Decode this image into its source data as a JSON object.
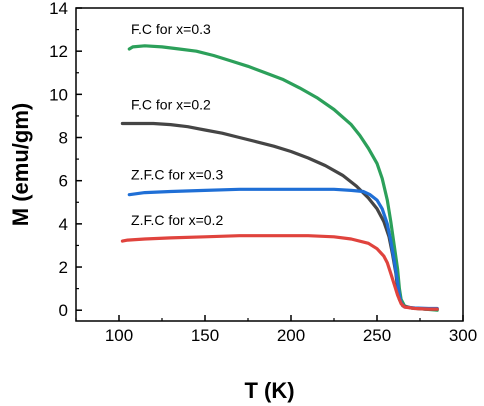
{
  "chart_data": {
    "type": "line",
    "xlabel": "T (K)",
    "ylabel": "M (emu/gm)",
    "xlim": [
      75,
      300
    ],
    "ylim": [
      -0.5,
      14
    ],
    "x_ticks": [
      100,
      150,
      200,
      250,
      300
    ],
    "y_ticks": [
      0,
      2,
      4,
      6,
      8,
      10,
      12,
      14
    ],
    "grid": false,
    "series": [
      {
        "name": "F.C for x=0.3",
        "color": "#2ca05a",
        "points": [
          [
            106,
            12.1
          ],
          [
            108,
            12.2
          ],
          [
            115,
            12.25
          ],
          [
            125,
            12.2
          ],
          [
            135,
            12.1
          ],
          [
            145,
            12.0
          ],
          [
            155,
            11.8
          ],
          [
            165,
            11.55
          ],
          [
            175,
            11.3
          ],
          [
            185,
            11.0
          ],
          [
            195,
            10.7
          ],
          [
            205,
            10.3
          ],
          [
            215,
            9.85
          ],
          [
            225,
            9.3
          ],
          [
            235,
            8.6
          ],
          [
            240,
            8.1
          ],
          [
            245,
            7.5
          ],
          [
            250,
            6.8
          ],
          [
            253,
            6.1
          ],
          [
            256,
            5.1
          ],
          [
            258,
            4.1
          ],
          [
            260,
            3.0
          ],
          [
            262,
            1.9
          ],
          [
            263,
            1.0
          ],
          [
            264,
            0.5
          ],
          [
            266,
            0.2
          ],
          [
            270,
            0.1
          ],
          [
            278,
            0.05
          ],
          [
            285,
            0.0
          ]
        ]
      },
      {
        "name": "F.C for x=0.2",
        "color": "#454545",
        "points": [
          [
            102,
            8.65
          ],
          [
            110,
            8.65
          ],
          [
            120,
            8.65
          ],
          [
            130,
            8.6
          ],
          [
            140,
            8.5
          ],
          [
            150,
            8.35
          ],
          [
            160,
            8.2
          ],
          [
            170,
            8.0
          ],
          [
            180,
            7.8
          ],
          [
            190,
            7.6
          ],
          [
            200,
            7.35
          ],
          [
            210,
            7.05
          ],
          [
            220,
            6.7
          ],
          [
            230,
            6.25
          ],
          [
            238,
            5.75
          ],
          [
            245,
            5.2
          ],
          [
            250,
            4.7
          ],
          [
            254,
            4.1
          ],
          [
            257,
            3.4
          ],
          [
            259,
            2.6
          ],
          [
            261,
            1.7
          ],
          [
            262,
            1.0
          ],
          [
            263,
            0.5
          ],
          [
            265,
            0.2
          ],
          [
            270,
            0.1
          ],
          [
            278,
            0.05
          ],
          [
            285,
            0.05
          ]
        ]
      },
      {
        "name": "Z.F.C for x=0.3",
        "color": "#1f6fd6",
        "points": [
          [
            106,
            5.35
          ],
          [
            115,
            5.45
          ],
          [
            130,
            5.5
          ],
          [
            150,
            5.55
          ],
          [
            170,
            5.6
          ],
          [
            190,
            5.6
          ],
          [
            210,
            5.6
          ],
          [
            225,
            5.6
          ],
          [
            235,
            5.55
          ],
          [
            242,
            5.5
          ],
          [
            246,
            5.35
          ],
          [
            250,
            5.1
          ],
          [
            253,
            4.7
          ],
          [
            256,
            4.0
          ],
          [
            258,
            3.2
          ],
          [
            260,
            2.3
          ],
          [
            262,
            1.3
          ],
          [
            263,
            0.7
          ],
          [
            264,
            0.35
          ],
          [
            266,
            0.15
          ],
          [
            272,
            0.1
          ],
          [
            280,
            0.08
          ],
          [
            285,
            0.08
          ]
        ]
      },
      {
        "name": "Z.F.C for x=0.2",
        "color": "#e0433d",
        "points": [
          [
            102,
            3.2
          ],
          [
            105,
            3.25
          ],
          [
            115,
            3.3
          ],
          [
            130,
            3.35
          ],
          [
            150,
            3.4
          ],
          [
            170,
            3.45
          ],
          [
            190,
            3.45
          ],
          [
            210,
            3.45
          ],
          [
            225,
            3.4
          ],
          [
            235,
            3.3
          ],
          [
            245,
            3.1
          ],
          [
            250,
            2.85
          ],
          [
            254,
            2.5
          ],
          [
            256,
            2.2
          ],
          [
            258,
            1.7
          ],
          [
            260,
            1.2
          ],
          [
            262,
            0.7
          ],
          [
            264,
            0.3
          ],
          [
            266,
            0.15
          ],
          [
            272,
            0.08
          ],
          [
            280,
            0.05
          ],
          [
            285,
            0.05
          ]
        ]
      }
    ],
    "annotations": [
      {
        "text": "F.C for x=0.3",
        "x": 107,
        "y": 12.8
      },
      {
        "text": "F.C for x=0.2",
        "x": 107,
        "y": 9.3
      },
      {
        "text": "Z.F.C for x=0.3",
        "x": 107,
        "y": 6.05
      },
      {
        "text": "Z.F.C for x=0.2",
        "x": 107,
        "y": 3.95
      }
    ]
  }
}
